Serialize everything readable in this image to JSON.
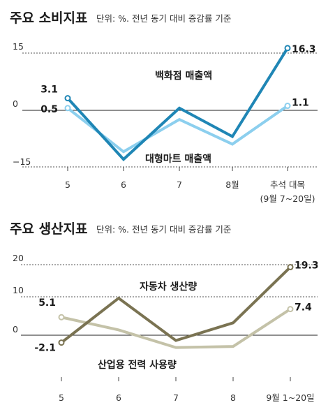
{
  "chart_data": [
    {
      "type": "line",
      "title": "주요 소비지표",
      "subtitle": "단위: %. 전년 동기 대비 증감률 기준",
      "categories": [
        "5",
        "6",
        "7",
        "8월",
        "추석 대목"
      ],
      "category_sub": "(9월 7~20일)",
      "yticks": [
        "15",
        "0",
        "−15"
      ],
      "ylim": [
        -15,
        15
      ],
      "series": [
        {
          "name": "백화점 매출액",
          "color": "#1f86b5",
          "values": [
            3.1,
            -13,
            0.5,
            -7,
            16.3
          ],
          "first_label": "3.1",
          "last_label": "16.3"
        },
        {
          "name": "대형마트 매출액",
          "color": "#8ccfee",
          "values": [
            0.5,
            -11,
            -2.5,
            -9,
            1.1
          ],
          "first_label": "0.5",
          "last_label": "1.1"
        }
      ]
    },
    {
      "type": "line",
      "title": "주요 생산지표",
      "subtitle": "단위: %. 전년 동기 대비 증감률 기준",
      "categories": [
        "5",
        "6",
        "7",
        "8",
        "9월 1~20일"
      ],
      "yticks": [
        "20",
        "10",
        "0"
      ],
      "ylim": [
        -5,
        20
      ],
      "series": [
        {
          "name": "자동차 생산량",
          "color": "#7a7352",
          "values": [
            -2.1,
            10.5,
            -1.5,
            3.5,
            19.3
          ],
          "first_label": "-2.1",
          "last_label": "19.3"
        },
        {
          "name": "산업용 전력 사용량",
          "color": "#c4c2a8",
          "values": [
            5.1,
            1.5,
            -3.5,
            -3.2,
            7.4
          ],
          "first_label": "5.1",
          "last_label": "7.4"
        }
      ]
    }
  ]
}
